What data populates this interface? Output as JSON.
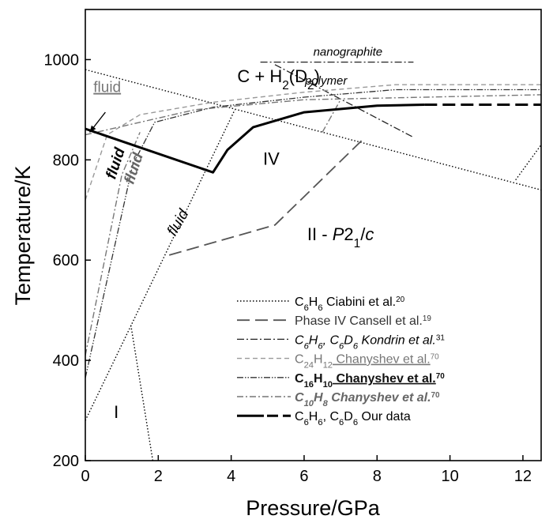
{
  "chart_data": {
    "type": "line",
    "xlabel": "Pressure/GPa",
    "ylabel": "Temperature/K",
    "xlim": [
      0,
      12.5
    ],
    "ylim": [
      200,
      1100
    ],
    "x_ticks": [
      0,
      2,
      4,
      6,
      8,
      10,
      12
    ],
    "y_ticks": [
      200,
      400,
      600,
      800,
      1000
    ],
    "grid": false,
    "legend_position": "bottom-right",
    "region_labels": [
      {
        "text": "C + H2(D2)",
        "x": 5.3,
        "y": 955
      },
      {
        "text": "IV",
        "x": 5.1,
        "y": 790
      },
      {
        "text": "II - P21/c",
        "x": 7.0,
        "y": 640
      },
      {
        "text": "I",
        "x": 0.85,
        "y": 285
      },
      {
        "text": "nanographite",
        "x": 7.2,
        "y": 1008
      },
      {
        "text": "polymer",
        "x": 6.6,
        "y": 950
      },
      {
        "text": "fluid",
        "x": 0.6,
        "y": 935,
        "role": "fluid-top"
      },
      {
        "text": "fluid",
        "x": 0.95,
        "y": 790,
        "role": "fluid-a"
      },
      {
        "text": "fluid",
        "x": 1.45,
        "y": 780,
        "role": "fluid-b"
      },
      {
        "text": "fluid",
        "x": 2.65,
        "y": 670,
        "role": "fluid-c"
      }
    ],
    "legend": [
      {
        "label_main": "C6H6",
        "label_rest": " Ciabini et al.",
        "sup": "20",
        "style": "ciabini"
      },
      {
        "label_main": "Phase IV",
        "label_rest": " Cansell et al.",
        "sup": "19",
        "style": "cansell"
      },
      {
        "label_main": "C6H6, C6D6",
        "label_rest": " Kondrin et al.",
        "sup": "31",
        "style": "kondrin"
      },
      {
        "label_main": "C24H12",
        "label_rest": " Chanyshev et al.",
        "sup": "70",
        "style": "c24"
      },
      {
        "label_main": "C16H10",
        "label_rest": " Chanyshev et al.",
        "sup": "70",
        "style": "c16"
      },
      {
        "label_main": "C10H8",
        "label_rest": " Chanyshev et al.",
        "sup": "70",
        "style": "c10"
      },
      {
        "label_main": "C6H6, C6D6",
        "label_rest": " Our data",
        "sup": "",
        "style": "ours"
      }
    ],
    "series": [
      {
        "style": "ciabini",
        "segments": [
          [
            [
              0,
              980
            ],
            [
              12.5,
              740
            ]
          ],
          [
            [
              0,
              280
            ],
            [
              4.1,
              900
            ]
          ],
          [
            [
              1.25,
              470
            ],
            [
              1.85,
              200
            ]
          ],
          [
            [
              11.8,
              760
            ],
            [
              12.5,
              830
            ]
          ]
        ]
      },
      {
        "style": "cansell",
        "segments": [
          [
            [
              2.3,
              610
            ],
            [
              5.2,
              670
            ],
            [
              7.6,
              840
            ]
          ]
        ]
      },
      {
        "style": "kondrin",
        "segments": [
          [
            [
              4.8,
              995
            ],
            [
              9.0,
              995
            ]
          ],
          [
            [
              5.2,
              990
            ],
            [
              9.0,
              845
            ]
          ]
        ]
      },
      {
        "style": "c24",
        "segments": [
          [
            [
              0,
              720
            ],
            [
              0.6,
              850
            ],
            [
              1.5,
              890
            ],
            [
              3.5,
              915
            ],
            [
              6.0,
              935
            ],
            [
              8.5,
              950
            ],
            [
              12.5,
              950
            ]
          ]
        ]
      },
      {
        "style": "c16",
        "segments": [
          [
            [
              0,
              365
            ],
            [
              1.3,
              790
            ],
            [
              1.9,
              875
            ],
            [
              3.5,
              905
            ],
            [
              6.0,
              925
            ],
            [
              8.5,
              940
            ],
            [
              12.5,
              940
            ]
          ]
        ]
      },
      {
        "style": "c10",
        "segments": [
          [
            [
              0,
              850
            ],
            [
              3.0,
              900
            ],
            [
              6.0,
              920
            ],
            [
              12.5,
              930
            ]
          ],
          [
            [
              0,
              410
            ],
            [
              1.0,
              770
            ],
            [
              1.5,
              855
            ]
          ],
          [
            [
              6.5,
              855
            ],
            [
              7.0,
              920
            ]
          ]
        ]
      },
      {
        "style": "ours",
        "segments": [
          [
            [
              0,
              862
            ],
            [
              3.5,
              775
            ],
            [
              3.9,
              820
            ],
            [
              4.6,
              865
            ],
            [
              6.0,
              895
            ],
            [
              8.0,
              908
            ],
            [
              9.3,
              910
            ]
          ]
        ]
      },
      {
        "style": "ours-dash",
        "segments": [
          [
            [
              9.3,
              910
            ],
            [
              12.5,
              910
            ]
          ]
        ]
      }
    ],
    "arrow": {
      "from": [
        0.55,
        895
      ],
      "to": [
        0.12,
        855
      ]
    },
    "colors": {
      "axis": "#000000",
      "gray": "#555555",
      "light_gray": "#888888"
    }
  }
}
